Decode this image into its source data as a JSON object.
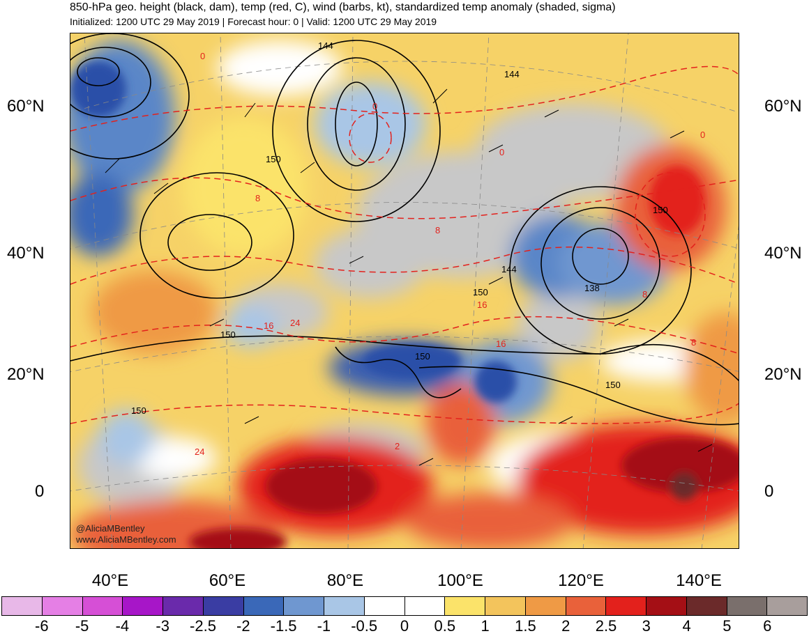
{
  "header": {
    "title": "850-hPa geo. height (black, dam), temp (red, C), wind (barbs, kt), standardized temp anomaly (shaded, sigma)",
    "subtitle": "Initialized: 1200 UTC 29 May 2019 | Forecast hour: 0 | Valid: 1200 UTC 29 May 2019"
  },
  "map": {
    "lat_labels": [
      "60°N",
      "40°N",
      "20°N",
      "0"
    ],
    "lon_labels": [
      "40°E",
      "60°E",
      "80°E",
      "100°E",
      "120°E",
      "140°E"
    ],
    "height_labels": [
      "144",
      "144",
      "150",
      "150",
      "144",
      "150",
      "138",
      "150",
      "150",
      "150",
      "150"
    ],
    "temp_labels": [
      "0",
      "0",
      "0",
      "0",
      "8",
      "8",
      "8",
      "16",
      "16",
      "16",
      "24",
      "24",
      "8",
      "2"
    ],
    "credit_line1": "@AliciaMBentley",
    "credit_line2": "www.AliciaMBentley.com",
    "colors": {
      "neg_deep": "#2a4fa8",
      "neg_mid": "#5a86c8",
      "neg_light": "#a9c6e6",
      "neutral": "#ffffff",
      "land_mask": "#c8c8c8",
      "pos_light": "#fbe36a",
      "pos_2": "#f3c45c",
      "pos_3": "#ef9a45",
      "pos_4": "#e9613a",
      "pos_5": "#e3211c",
      "pos_6": "#a40f15",
      "height_contour": "#000000",
      "temp_contour": "#e3211c"
    }
  },
  "colorbar": {
    "labels": [
      "-6",
      "-5",
      "-4",
      "-3",
      "-2.5",
      "-2",
      "-1.5",
      "-1",
      "-0.5",
      "0",
      "0.5",
      "1",
      "1.5",
      "2",
      "2.5",
      "3",
      "4",
      "5",
      "6"
    ],
    "colors": [
      "#e8b8e8",
      "#e57fe5",
      "#d64fd6",
      "#a716c8",
      "#6a2aab",
      "#3a3da3",
      "#3a68b8",
      "#6f97d0",
      "#a9c6e6",
      "#ffffff",
      "#ffffff",
      "#fbe36a",
      "#f3c45c",
      "#ef9a45",
      "#e9613a",
      "#e3211c",
      "#a40f15",
      "#6b2a2a",
      "#7a6f6c",
      "#a89e9c"
    ]
  }
}
